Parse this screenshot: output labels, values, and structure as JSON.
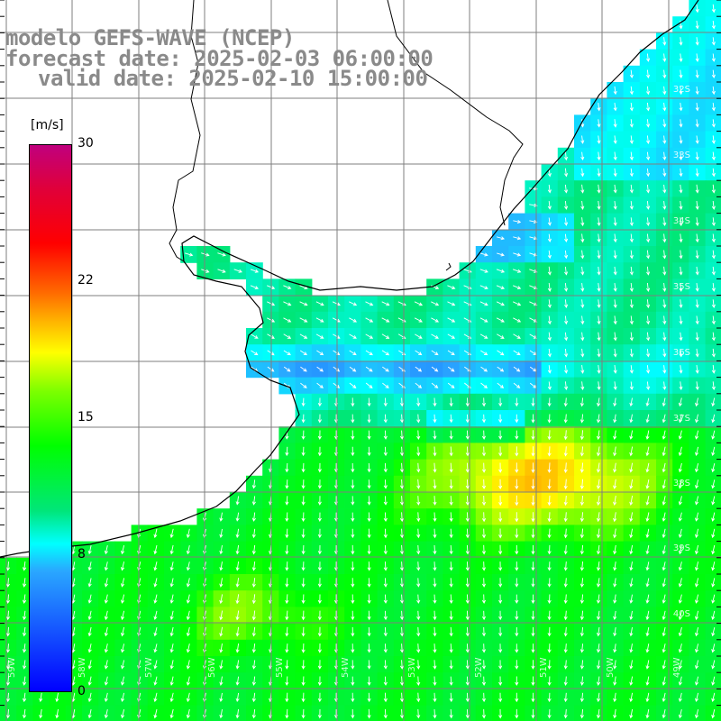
{
  "title": {
    "line1": "modelo GEFS-WAVE (NCEP)",
    "line2": "forecast date: 2025-02-03 06:00:00",
    "line3": "valid date: 2025-02-10 15:00:00"
  },
  "colorbar": {
    "unit": "[m/s]",
    "ticks": [
      "30",
      "22",
      "15",
      "8",
      "0"
    ],
    "colors": [
      "#0000ff",
      "#2aa7ff",
      "#00ffff",
      "#00ff00",
      "#ffff00",
      "#ff6a00",
      "#ff0000",
      "#c0007e"
    ]
  },
  "lat_labels": [
    "32S",
    "33S",
    "34S",
    "35S",
    "36S",
    "37S",
    "38S",
    "39S",
    "40S"
  ],
  "lon_labels": [
    "59W",
    "58W",
    "57W",
    "56W",
    "55W",
    "54W",
    "53W",
    "52W",
    "51W",
    "50W",
    "49W"
  ],
  "map": {
    "coastline_color": "#000000",
    "grid_color": "#7f7f7f",
    "arrow_color": "#ffffff",
    "land_color": "#ffffff"
  }
}
